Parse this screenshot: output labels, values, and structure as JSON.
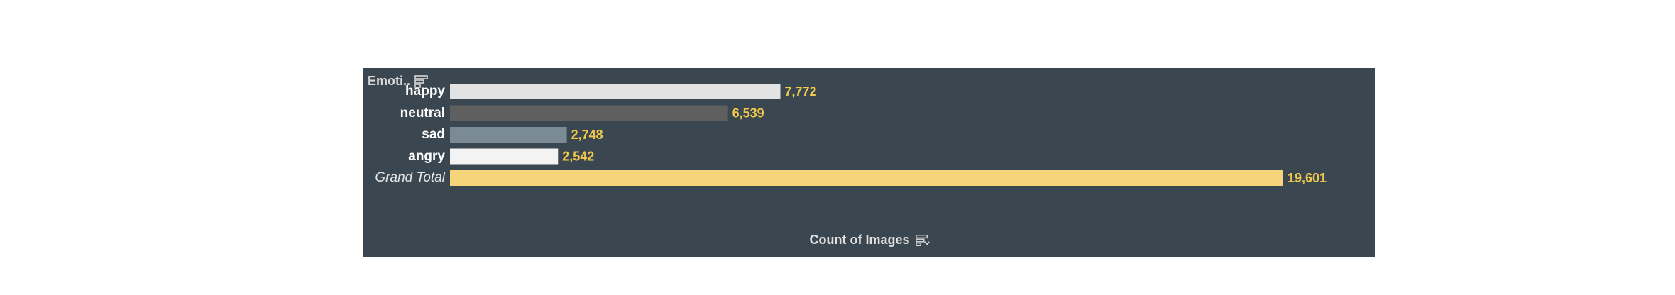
{
  "chart_data": {
    "type": "bar",
    "orientation": "horizontal",
    "header": "Emoti..",
    "categories": [
      "happy",
      "neutral",
      "sad",
      "angry",
      "Grand Total"
    ],
    "values": [
      7772,
      6539,
      2748,
      2542,
      19601
    ],
    "value_labels": [
      "7,772",
      "6,539",
      "2,748",
      "2,542",
      "19,601"
    ],
    "bar_colors": [
      "#e3e3e3",
      "#5f5f5f",
      "#7a8b96",
      "#f3f3f3",
      "#f6d57a"
    ],
    "value_label_color": "#f2c94c",
    "xlabel": "Count of Images",
    "ylabel": "",
    "xlim": [
      0,
      19601
    ],
    "background": "#3b4750",
    "grid": false,
    "legend": "none"
  },
  "icons": {
    "header_icon": "sort-icon",
    "footer_icon": "sort-descending-icon"
  }
}
